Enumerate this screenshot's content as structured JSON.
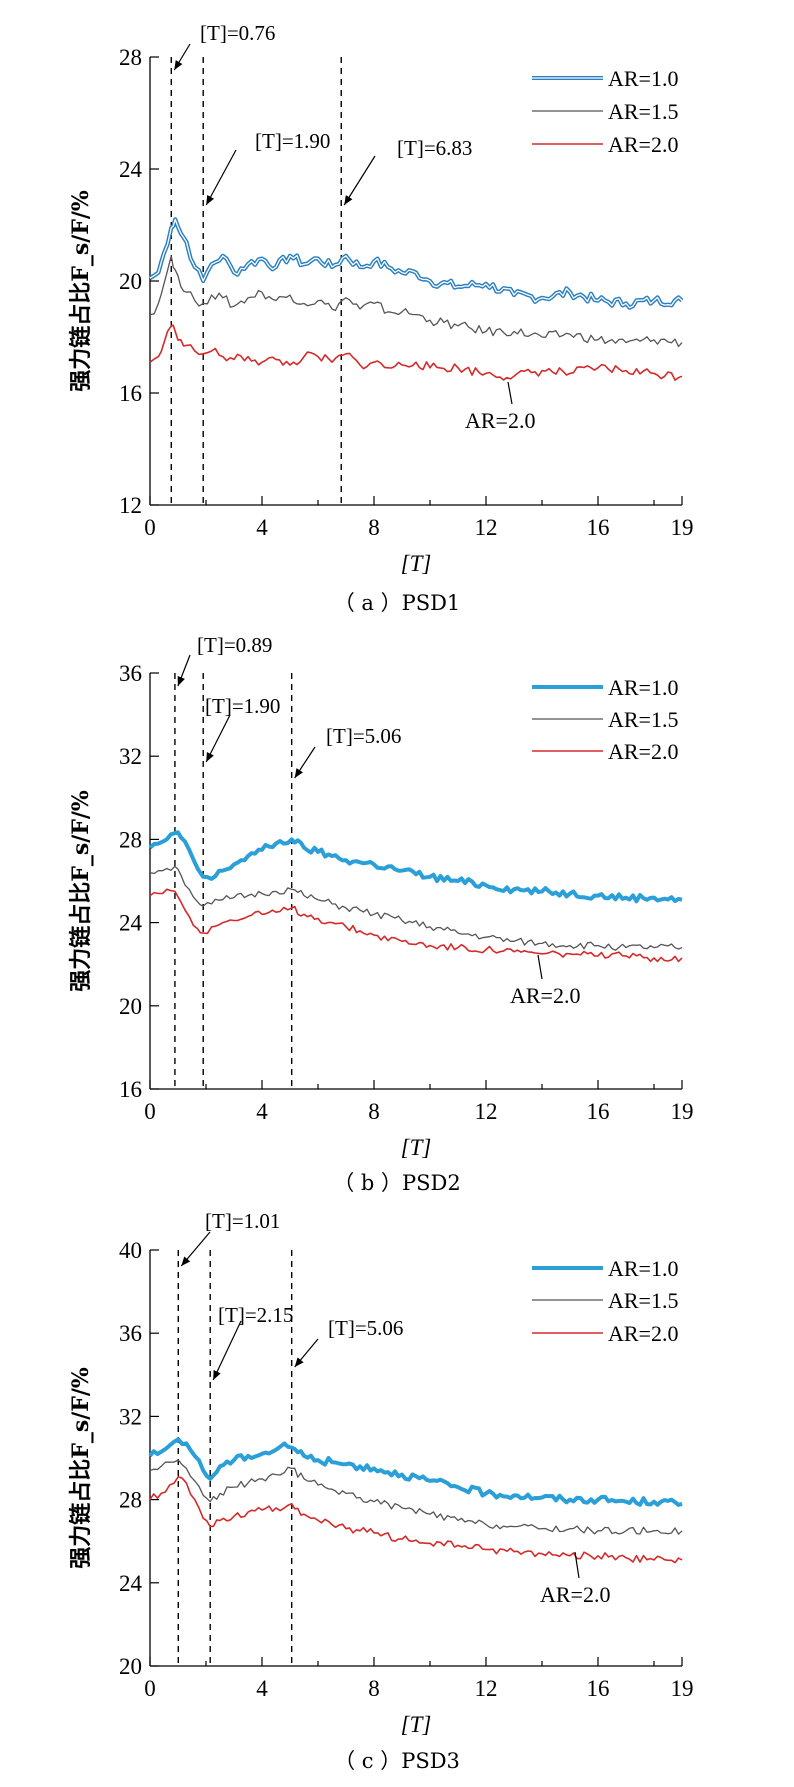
{
  "chart_data": [
    {
      "type": "line",
      "id": "a",
      "caption": "（ a ）PSD1",
      "xlabel": "[T]",
      "ylabel": "强力链占比F_s/F/%",
      "xlim": [
        0,
        19
      ],
      "ylim": [
        12,
        28
      ],
      "xticks": [
        "0",
        "4",
        "8",
        "12",
        "16",
        "19"
      ],
      "yticks": [
        "12",
        "16",
        "20",
        "24",
        "28"
      ],
      "legend": [
        "AR=1.0",
        "AR=1.5",
        "AR=2.0"
      ],
      "colors": [
        "#2a7fc0",
        "#555555",
        "#d42a2a"
      ],
      "vlines": [
        {
          "x": 0.76,
          "label": "[T]=0.76"
        },
        {
          "x": 1.9,
          "label": "[T]=1.90"
        },
        {
          "x": 6.83,
          "label": "[T]=6.83"
        }
      ],
      "annotation": "AR=2.0",
      "series": [
        {
          "name": "AR=1.0",
          "x": [
            0,
            0.3,
            0.5,
            0.76,
            0.9,
            1.1,
            1.3,
            1.6,
            1.9,
            2.2,
            2.6,
            3,
            3.5,
            4,
            4.5,
            5,
            5.5,
            6,
            6.5,
            7,
            7.5,
            8,
            8.5,
            9,
            9.5,
            10,
            11,
            12,
            13,
            14,
            15,
            16,
            17,
            18,
            19
          ],
          "y": [
            20.1,
            20.3,
            21.0,
            21.9,
            22.2,
            21.7,
            21.4,
            20.5,
            20.0,
            20.6,
            20.9,
            20.3,
            20.6,
            20.8,
            20.5,
            20.9,
            20.6,
            20.8,
            20.5,
            20.9,
            20.5,
            20.7,
            20.5,
            20.3,
            20.3,
            20.0,
            19.8,
            19.9,
            19.5,
            19.4,
            19.6,
            19.3,
            19.2,
            19.3,
            19.3
          ]
        },
        {
          "name": "AR=1.5",
          "x": [
            0,
            0.3,
            0.5,
            0.76,
            0.9,
            1.1,
            1.3,
            1.6,
            1.9,
            2.2,
            2.6,
            3,
            3.5,
            4,
            4.5,
            5,
            5.5,
            6,
            6.5,
            7,
            7.5,
            8,
            8.5,
            9,
            9.5,
            10,
            11,
            12,
            13,
            14,
            15,
            16,
            17,
            18,
            19
          ],
          "y": [
            18.8,
            19.2,
            19.9,
            20.9,
            20.4,
            19.8,
            19.6,
            19.3,
            19.2,
            19.5,
            19.4,
            19.1,
            19.4,
            19.6,
            19.3,
            19.5,
            19.2,
            19.3,
            19.0,
            19.4,
            19.0,
            19.2,
            18.9,
            18.9,
            18.8,
            18.6,
            18.4,
            18.2,
            18.2,
            18.0,
            18.1,
            17.9,
            17.8,
            17.9,
            17.8
          ]
        },
        {
          "name": "AR=2.0",
          "x": [
            0,
            0.3,
            0.5,
            0.76,
            0.9,
            1.1,
            1.3,
            1.6,
            1.9,
            2.2,
            2.6,
            3,
            3.5,
            4,
            4.5,
            5,
            5.5,
            6,
            6.5,
            7,
            7.5,
            8,
            8.5,
            9,
            9.5,
            10,
            11,
            12,
            13,
            14,
            15,
            16,
            17,
            18,
            19
          ],
          "y": [
            17.1,
            17.3,
            17.8,
            18.4,
            18.2,
            17.9,
            17.7,
            17.5,
            17.4,
            17.5,
            17.3,
            17.2,
            17.3,
            17.1,
            17.2,
            17.0,
            17.3,
            17.3,
            17.1,
            17.4,
            17.0,
            17.1,
            16.9,
            17.0,
            17.1,
            16.9,
            16.9,
            16.7,
            16.6,
            16.8,
            16.7,
            16.9,
            16.8,
            16.7,
            16.6
          ]
        }
      ]
    },
    {
      "type": "line",
      "id": "b",
      "caption": "（ b ）PSD2",
      "xlabel": "[T]",
      "ylabel": "强力链占比F_s/F/%",
      "xlim": [
        0,
        19
      ],
      "ylim": [
        16,
        36
      ],
      "xticks": [
        "0",
        "4",
        "8",
        "12",
        "16",
        "19"
      ],
      "yticks": [
        "16",
        "20",
        "24",
        "28",
        "32",
        "36"
      ],
      "legend": [
        "AR=1.0",
        "AR=1.5",
        "AR=2.0"
      ],
      "colors": [
        "#2a9fd8",
        "#555555",
        "#d42a2a"
      ],
      "vlines": [
        {
          "x": 0.89,
          "label": "[T]=0.89"
        },
        {
          "x": 1.9,
          "label": "[T]=1.90"
        },
        {
          "x": 5.06,
          "label": "[T]=5.06"
        }
      ],
      "annotation": "AR=2.0",
      "series": [
        {
          "name": "AR=1.0",
          "x": [
            0,
            0.3,
            0.6,
            0.89,
            1.1,
            1.4,
            1.7,
            1.9,
            2.2,
            2.6,
            3,
            3.5,
            4,
            4.5,
            5.06,
            5.5,
            6,
            6.5,
            7,
            7.5,
            8,
            9,
            10,
            11,
            12,
            13,
            14,
            15,
            16,
            17,
            18,
            19
          ],
          "y": [
            27.6,
            27.8,
            28.0,
            28.3,
            28.1,
            27.5,
            26.6,
            26.2,
            26.1,
            26.5,
            26.8,
            27.2,
            27.5,
            27.8,
            28.0,
            27.6,
            27.4,
            27.2,
            27.0,
            26.9,
            26.8,
            26.5,
            26.2,
            26.0,
            25.8,
            25.6,
            25.5,
            25.4,
            25.3,
            25.2,
            25.2,
            25.1
          ]
        },
        {
          "name": "AR=1.5",
          "x": [
            0,
            0.3,
            0.6,
            0.89,
            1.1,
            1.4,
            1.7,
            1.9,
            2.2,
            2.6,
            3,
            3.5,
            4,
            4.5,
            5.06,
            5.5,
            6,
            6.5,
            7,
            7.5,
            8,
            9,
            10,
            11,
            12,
            13,
            14,
            15,
            16,
            17,
            18,
            19
          ],
          "y": [
            26.4,
            26.5,
            26.6,
            26.7,
            26.3,
            25.6,
            25.0,
            24.8,
            24.9,
            25.1,
            25.2,
            25.3,
            25.4,
            25.5,
            25.6,
            25.3,
            25.1,
            24.9,
            24.7,
            24.6,
            24.4,
            24.1,
            23.8,
            23.5,
            23.3,
            23.1,
            23.0,
            22.9,
            22.9,
            22.8,
            22.8,
            22.8
          ]
        },
        {
          "name": "AR=2.0",
          "x": [
            0,
            0.3,
            0.6,
            0.89,
            1.1,
            1.4,
            1.7,
            1.9,
            2.2,
            2.6,
            3,
            3.5,
            4,
            4.5,
            5.06,
            5.5,
            6,
            6.5,
            7,
            7.5,
            8,
            9,
            10,
            11,
            12,
            13,
            14,
            15,
            16,
            17,
            18,
            19
          ],
          "y": [
            25.3,
            25.4,
            25.6,
            25.5,
            25.0,
            24.3,
            23.7,
            23.5,
            23.8,
            24.0,
            24.1,
            24.3,
            24.4,
            24.5,
            24.7,
            24.4,
            24.2,
            24.0,
            23.8,
            23.6,
            23.4,
            23.1,
            22.9,
            22.8,
            22.7,
            22.6,
            22.5,
            22.5,
            22.4,
            22.4,
            22.3,
            22.3
          ]
        }
      ]
    },
    {
      "type": "line",
      "id": "c",
      "caption": "（ c ）PSD3",
      "xlabel": "[T]",
      "ylabel": "强力链占比F_s/F/%",
      "xlim": [
        0,
        19
      ],
      "ylim": [
        20,
        40
      ],
      "xticks": [
        "0",
        "4",
        "8",
        "12",
        "16",
        "19"
      ],
      "yticks": [
        "20",
        "24",
        "28",
        "32",
        "36",
        "40"
      ],
      "legend": [
        "AR=1.0",
        "AR=1.5",
        "AR=2.0"
      ],
      "colors": [
        "#2a9fd8",
        "#555555",
        "#d42a2a"
      ],
      "vlines": [
        {
          "x": 1.01,
          "label": "[T]=1.01"
        },
        {
          "x": 2.15,
          "label": "[T]=2.15"
        },
        {
          "x": 5.06,
          "label": "[T]=5.06"
        }
      ],
      "annotation": "AR=2.0",
      "series": [
        {
          "name": "AR=1.0",
          "x": [
            0,
            0.4,
            0.7,
            1.01,
            1.3,
            1.6,
            1.9,
            2.15,
            2.5,
            3,
            3.5,
            4,
            4.5,
            4.8,
            5.06,
            5.5,
            6,
            6.5,
            7,
            7.5,
            8,
            9,
            10,
            11,
            12,
            13,
            14,
            15,
            16,
            17,
            18,
            19
          ],
          "y": [
            30.1,
            30.3,
            30.6,
            30.9,
            30.7,
            30.1,
            29.4,
            29.0,
            29.6,
            29.9,
            30.1,
            30.2,
            30.4,
            30.7,
            30.5,
            30.1,
            29.9,
            29.8,
            29.7,
            29.6,
            29.5,
            29.2,
            28.9,
            28.6,
            28.3,
            28.2,
            28.1,
            28.0,
            28.0,
            27.9,
            27.9,
            27.8
          ]
        },
        {
          "name": "AR=1.5",
          "x": [
            0,
            0.4,
            0.7,
            1.01,
            1.3,
            1.6,
            1.9,
            2.15,
            2.5,
            3,
            3.5,
            4,
            4.5,
            4.8,
            5.06,
            5.5,
            6,
            6.5,
            7,
            7.5,
            8,
            9,
            10,
            11,
            12,
            13,
            14,
            15,
            16,
            17,
            18,
            19
          ],
          "y": [
            29.4,
            29.6,
            29.8,
            29.9,
            29.5,
            28.9,
            28.2,
            27.9,
            28.3,
            28.6,
            28.8,
            29.0,
            29.2,
            29.3,
            29.5,
            29.0,
            28.7,
            28.5,
            28.3,
            28.1,
            27.9,
            27.6,
            27.3,
            27.0,
            26.8,
            26.7,
            26.6,
            26.6,
            26.5,
            26.5,
            26.5,
            26.5
          ]
        },
        {
          "name": "AR=2.0",
          "x": [
            0,
            0.4,
            0.7,
            1.01,
            1.3,
            1.6,
            1.9,
            2.15,
            2.5,
            3,
            3.5,
            4,
            4.5,
            4.8,
            5.06,
            5.5,
            6,
            6.5,
            7,
            7.5,
            8,
            9,
            10,
            11,
            12,
            13,
            14,
            15,
            16,
            17,
            18,
            19
          ],
          "y": [
            28.0,
            28.3,
            28.7,
            29.1,
            28.8,
            28.0,
            27.1,
            26.7,
            27.0,
            27.2,
            27.4,
            27.5,
            27.6,
            27.6,
            27.8,
            27.3,
            27.0,
            26.8,
            26.6,
            26.5,
            26.4,
            26.1,
            25.9,
            25.8,
            25.6,
            25.5,
            25.4,
            25.3,
            25.3,
            25.2,
            25.1,
            25.1
          ]
        }
      ]
    }
  ]
}
